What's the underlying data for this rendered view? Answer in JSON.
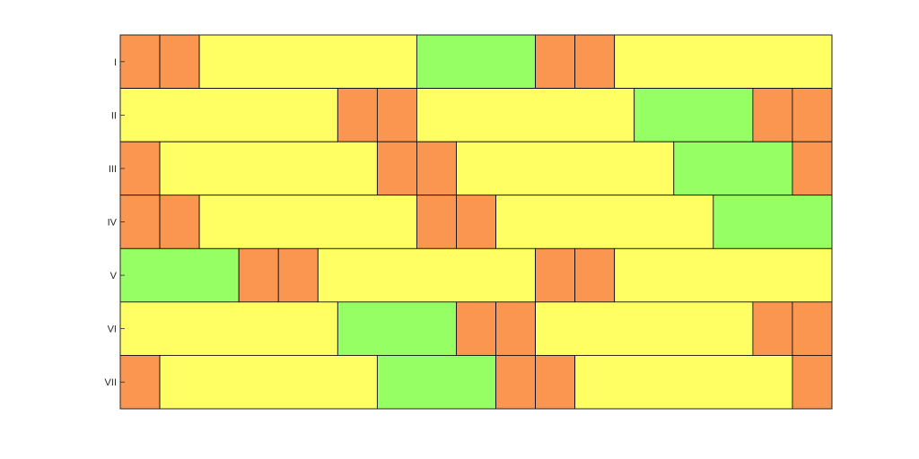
{
  "chart_data": {
    "type": "bar",
    "orientation": "horizontal",
    "stacked": true,
    "categories": [
      "I",
      "II",
      "III",
      "IV",
      "V",
      "VI",
      "VII"
    ],
    "xlim": [
      0,
      18
    ],
    "ylim": [
      0.5,
      7.5
    ],
    "grid": false,
    "legend": "none",
    "colors": {
      "orange": "#fa9650",
      "yellow": "#ffff64",
      "green": "#96ff64",
      "axis": "#262626"
    },
    "rows": [
      [
        {
          "start": 0,
          "end": 1,
          "color": "orange"
        },
        {
          "start": 1,
          "end": 2,
          "color": "orange"
        },
        {
          "start": 2,
          "end": 7.5,
          "color": "yellow"
        },
        {
          "start": 7.5,
          "end": 10.5,
          "color": "green"
        },
        {
          "start": 10.5,
          "end": 11.5,
          "color": "orange"
        },
        {
          "start": 11.5,
          "end": 12.5,
          "color": "orange"
        },
        {
          "start": 12.5,
          "end": 18,
          "color": "yellow"
        }
      ],
      [
        {
          "start": 0,
          "end": 5.5,
          "color": "yellow"
        },
        {
          "start": 5.5,
          "end": 6.5,
          "color": "orange"
        },
        {
          "start": 6.5,
          "end": 7.5,
          "color": "orange"
        },
        {
          "start": 7.5,
          "end": 13,
          "color": "yellow"
        },
        {
          "start": 13,
          "end": 16,
          "color": "green"
        },
        {
          "start": 16,
          "end": 17,
          "color": "orange"
        },
        {
          "start": 17,
          "end": 18,
          "color": "orange"
        }
      ],
      [
        {
          "start": 0,
          "end": 1,
          "color": "orange"
        },
        {
          "start": 1,
          "end": 6.5,
          "color": "yellow"
        },
        {
          "start": 6.5,
          "end": 7.5,
          "color": "orange"
        },
        {
          "start": 7.5,
          "end": 8.5,
          "color": "orange"
        },
        {
          "start": 8.5,
          "end": 14,
          "color": "yellow"
        },
        {
          "start": 14,
          "end": 17,
          "color": "green"
        },
        {
          "start": 17,
          "end": 18,
          "color": "orange"
        }
      ],
      [
        {
          "start": 0,
          "end": 1,
          "color": "orange"
        },
        {
          "start": 1,
          "end": 2,
          "color": "orange"
        },
        {
          "start": 2,
          "end": 7.5,
          "color": "yellow"
        },
        {
          "start": 7.5,
          "end": 8.5,
          "color": "orange"
        },
        {
          "start": 8.5,
          "end": 9.5,
          "color": "orange"
        },
        {
          "start": 9.5,
          "end": 15,
          "color": "yellow"
        },
        {
          "start": 15,
          "end": 18,
          "color": "green"
        }
      ],
      [
        {
          "start": 0,
          "end": 3,
          "color": "green"
        },
        {
          "start": 3,
          "end": 4,
          "color": "orange"
        },
        {
          "start": 4,
          "end": 5,
          "color": "orange"
        },
        {
          "start": 5,
          "end": 10.5,
          "color": "yellow"
        },
        {
          "start": 10.5,
          "end": 11.5,
          "color": "orange"
        },
        {
          "start": 11.5,
          "end": 12.5,
          "color": "orange"
        },
        {
          "start": 12.5,
          "end": 18,
          "color": "yellow"
        }
      ],
      [
        {
          "start": 0,
          "end": 5.5,
          "color": "yellow"
        },
        {
          "start": 5.5,
          "end": 8.5,
          "color": "green"
        },
        {
          "start": 8.5,
          "end": 9.5,
          "color": "orange"
        },
        {
          "start": 9.5,
          "end": 10.5,
          "color": "orange"
        },
        {
          "start": 10.5,
          "end": 16,
          "color": "yellow"
        },
        {
          "start": 16,
          "end": 17,
          "color": "orange"
        },
        {
          "start": 17,
          "end": 18,
          "color": "orange"
        }
      ],
      [
        {
          "start": 0,
          "end": 1,
          "color": "orange"
        },
        {
          "start": 1,
          "end": 6.5,
          "color": "yellow"
        },
        {
          "start": 6.5,
          "end": 9.5,
          "color": "green"
        },
        {
          "start": 9.5,
          "end": 10.5,
          "color": "orange"
        },
        {
          "start": 10.5,
          "end": 11.5,
          "color": "orange"
        },
        {
          "start": 11.5,
          "end": 17,
          "color": "yellow"
        },
        {
          "start": 17,
          "end": 18,
          "color": "orange"
        }
      ]
    ]
  }
}
